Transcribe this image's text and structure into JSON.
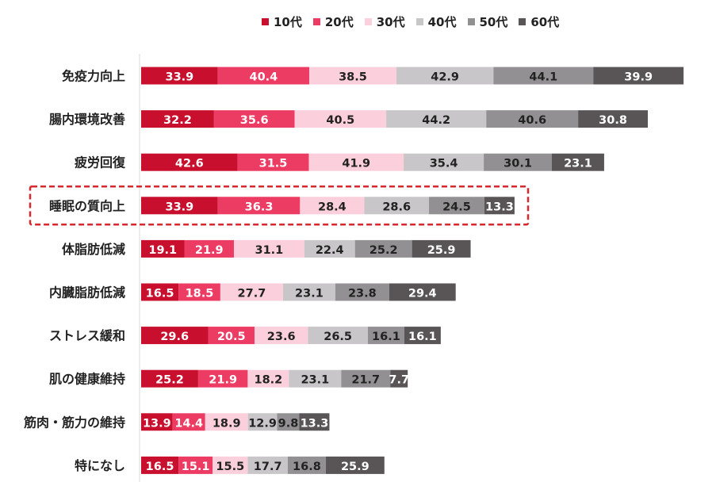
{
  "chart_data": {
    "type": "bar",
    "orientation": "horizontal",
    "stacked": true,
    "categories": [
      "免疫力向上",
      "腸内環境改善",
      "疲労回復",
      "睡眠の質向上",
      "体脂肪低減",
      "内臓脂肪低減",
      "ストレス緩和",
      "肌の健康維持",
      "筋肉・筋力の維持",
      "特になし"
    ],
    "series": [
      {
        "name": "10代",
        "color": "#c8102e",
        "values": [
          33.9,
          32.2,
          42.6,
          33.9,
          19.1,
          16.5,
          29.6,
          25.2,
          13.9,
          16.5
        ]
      },
      {
        "name": "20代",
        "color": "#ed3c64",
        "values": [
          40.4,
          35.6,
          31.5,
          36.3,
          21.9,
          18.5,
          20.5,
          21.9,
          14.4,
          15.1
        ]
      },
      {
        "name": "30代",
        "color": "#fbd0dc",
        "values": [
          38.5,
          40.5,
          41.9,
          28.4,
          31.1,
          27.7,
          23.6,
          18.2,
          18.9,
          15.5
        ]
      },
      {
        "name": "40代",
        "color": "#c8c6c8",
        "values": [
          42.9,
          44.2,
          35.4,
          28.6,
          22.4,
          23.1,
          26.5,
          23.1,
          12.9,
          17.7
        ]
      },
      {
        "name": "50代",
        "color": "#929092",
        "values": [
          44.1,
          40.6,
          30.1,
          24.5,
          25.2,
          23.8,
          16.1,
          21.7,
          9.8,
          16.8
        ]
      },
      {
        "name": "60代",
        "color": "#595557",
        "values": [
          39.9,
          30.8,
          23.1,
          13.3,
          25.9,
          29.4,
          16.1,
          7.7,
          13.3,
          25.9
        ]
      }
    ],
    "label_colors": [
      "#ffffff",
      "#ffffff",
      "#222222",
      "#222222",
      "#222222",
      "#ffffff"
    ],
    "highlight_category": "睡眠の質向上",
    "highlight_color": "#d7282f",
    "legend_position": "top",
    "grid": false,
    "xlabel": "",
    "ylabel": ""
  }
}
